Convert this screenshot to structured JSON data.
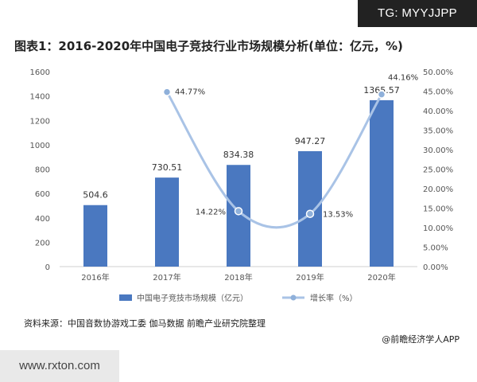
{
  "watermark_badge": "TG: MYYJJPP",
  "source_text": "资料来源：中国音数协游戏工委 伽马数据 前瞻产业研究院整理",
  "credit_text": "@前瞻经济学人APP",
  "footer_domain": "www.rxton.com",
  "colors": {
    "bar": "#4a78c0",
    "line": "#a9c3e6",
    "marker": "#8fb0da",
    "axis_text": "#555555",
    "value_text": "#333333"
  },
  "chart_data": {
    "type": "bar",
    "title": "图表1：2016-2020年中国电子竞技行业市场规模分析(单位：亿元，%)",
    "categories": [
      "2016年",
      "2017年",
      "2018年",
      "2019年",
      "2020年"
    ],
    "series": [
      {
        "name": "中国电子竞技市场规模（亿元）",
        "type": "bar",
        "axis": "left",
        "values": [
          504.6,
          730.51,
          834.38,
          947.27,
          1365.57
        ],
        "labels": [
          "504.6",
          "730.51",
          "834.38",
          "947.27",
          "1365.57"
        ]
      },
      {
        "name": "增长率（%）",
        "type": "line",
        "axis": "right",
        "values": [
          null,
          44.77,
          14.22,
          13.53,
          44.16
        ],
        "labels": [
          "",
          "44.77%",
          "14.22%",
          "13.53%",
          "44.16%"
        ]
      }
    ],
    "y_left": {
      "range": [
        0,
        1600
      ],
      "ticks": [
        "0",
        "200",
        "400",
        "600",
        "800",
        "1000",
        "1200",
        "1400",
        "1600"
      ]
    },
    "y_right": {
      "range": [
        0,
        50
      ],
      "ticks": [
        "0.00%",
        "5.00%",
        "10.00%",
        "15.00%",
        "20.00%",
        "25.00%",
        "30.00%",
        "35.00%",
        "40.00%",
        "45.00%",
        "50.00%"
      ]
    },
    "grid": false,
    "legend": "bottom"
  }
}
